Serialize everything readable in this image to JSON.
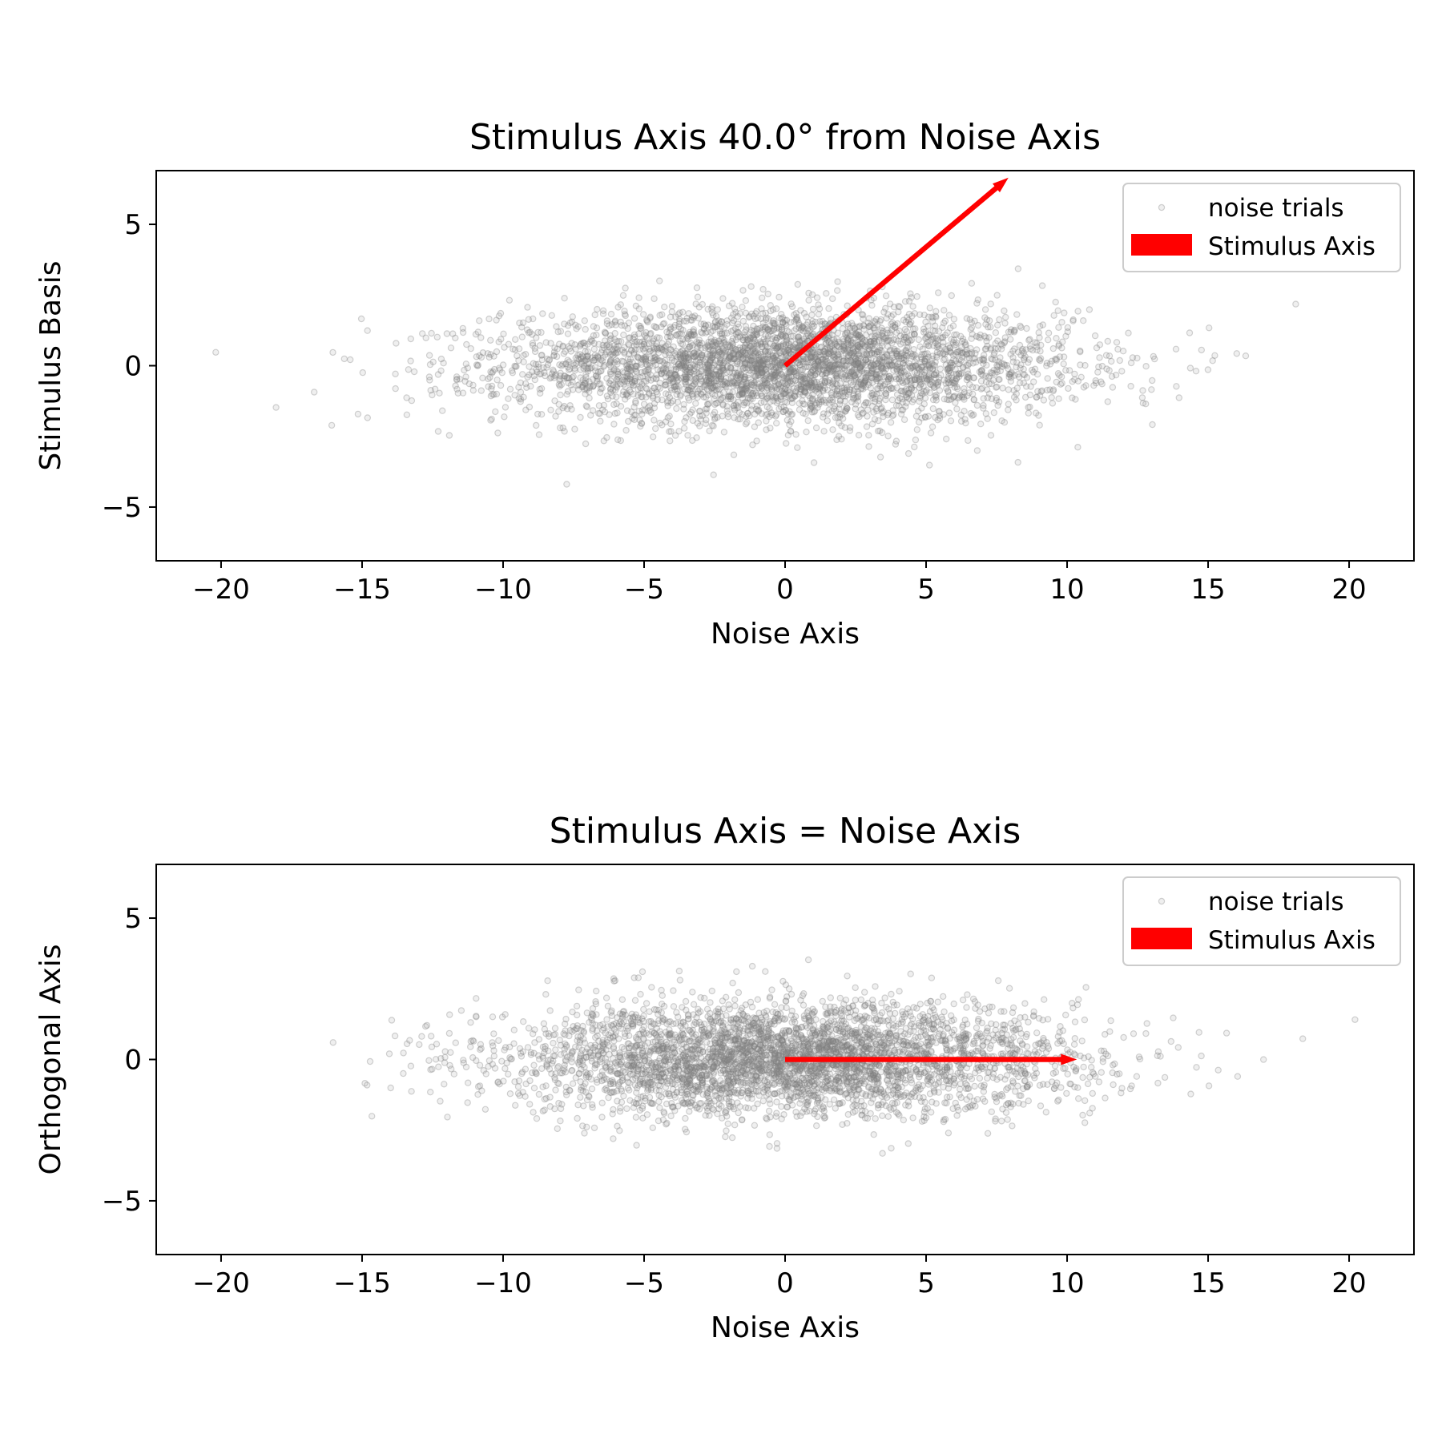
{
  "chart_data": [
    {
      "type": "scatter",
      "title": "Stimulus Axis 40.0° from Noise Axis",
      "xlabel": "Noise Axis",
      "ylabel": "Stimulus Basis",
      "xlim": [
        -22.3,
        22.3
      ],
      "ylim": [
        -6.9,
        6.9
      ],
      "xticks": [
        -20,
        -15,
        -10,
        -5,
        0,
        5,
        10,
        15,
        20
      ],
      "xtick_labels": [
        "−20",
        "−15",
        "−10",
        "−5",
        "0",
        "5",
        "10",
        "15",
        "20"
      ],
      "yticks": [
        -5,
        0,
        5
      ],
      "ytick_labels": [
        "−5",
        "0",
        "5"
      ],
      "grid": false,
      "legend_position": "top-right",
      "legend": [
        "noise trials",
        "Stimulus Axis"
      ],
      "scatter": {
        "name": "noise trials",
        "color": "#808080",
        "count": 4000,
        "center": [
          0,
          0
        ],
        "std": [
          5,
          1
        ]
      },
      "arrow": {
        "name": "Stimulus Axis",
        "color": "#ff0000",
        "start": [
          0,
          0
        ],
        "end": [
          7.92,
          6.65
        ]
      }
    },
    {
      "type": "scatter",
      "title": "Stimulus Axis = Noise Axis",
      "xlabel": "Noise Axis",
      "ylabel": "Orthogonal Axis",
      "xlim": [
        -22.3,
        22.3
      ],
      "ylim": [
        -6.9,
        6.9
      ],
      "xticks": [
        -20,
        -15,
        -10,
        -5,
        0,
        5,
        10,
        15,
        20
      ],
      "xtick_labels": [
        "−20",
        "−15",
        "−10",
        "−5",
        "0",
        "5",
        "10",
        "15",
        "20"
      ],
      "yticks": [
        -5,
        0,
        5
      ],
      "ytick_labels": [
        "−5",
        "0",
        "5"
      ],
      "grid": false,
      "legend_position": "top-right",
      "legend": [
        "noise trials",
        "Stimulus Axis"
      ],
      "scatter": {
        "name": "noise trials",
        "color": "#808080",
        "count": 4000,
        "center": [
          0,
          0
        ],
        "std": [
          5,
          1
        ]
      },
      "arrow": {
        "name": "Stimulus Axis",
        "color": "#ff0000",
        "start": [
          0,
          0
        ],
        "end": [
          10.35,
          0
        ]
      }
    }
  ]
}
